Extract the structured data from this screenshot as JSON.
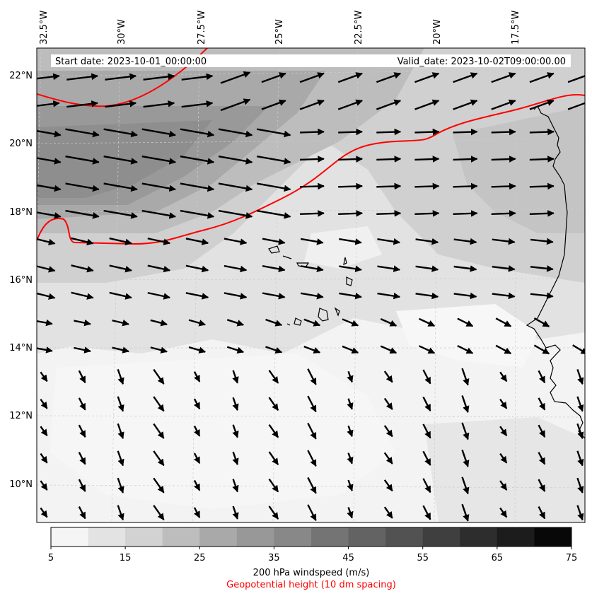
{
  "map": {
    "start_date": "Start date: 2023-10-01_00:00:00",
    "valid_date": "Valid_date: 2023-10-02T09:00:00.00",
    "lon_labels": [
      "32.5°W",
      "30°W",
      "27.5°W",
      "25°W",
      "22.5°W",
      "20°W",
      "17.5°W"
    ],
    "lat_labels": [
      "22°N",
      "20°N",
      "18°N",
      "16°N",
      "14°N",
      "12°N",
      "10°N"
    ],
    "windspeed_field": "shaded 200 hPa windspeed (greyscale)",
    "wind_vectors": "black arrows, mostly eastward north of 14°N, southward/southeastward south of 14°N",
    "geopotential_contour_color": "#ff0000",
    "coastline_color": "#000000"
  },
  "colorbar": {
    "ticks": [
      "5",
      "15",
      "25",
      "35",
      "45",
      "55",
      "65",
      "75"
    ],
    "levels": [
      5,
      10,
      15,
      20,
      25,
      30,
      35,
      40,
      45,
      50,
      55,
      60,
      65,
      70,
      75
    ],
    "colors": [
      "#f5f5f5",
      "#e3e3e3",
      "#d2d2d2",
      "#bdbdbd",
      "#a9a9a9",
      "#989898",
      "#888888",
      "#747474",
      "#636363",
      "#525252",
      "#3f3f3f",
      "#2d2d2d",
      "#1c1c1c",
      "#080808"
    ],
    "label": "200 hPa windspeed (m/s)",
    "sublabel": "Geopotential height (10 dm spacing)",
    "sublabel_color": "#ff0000"
  }
}
